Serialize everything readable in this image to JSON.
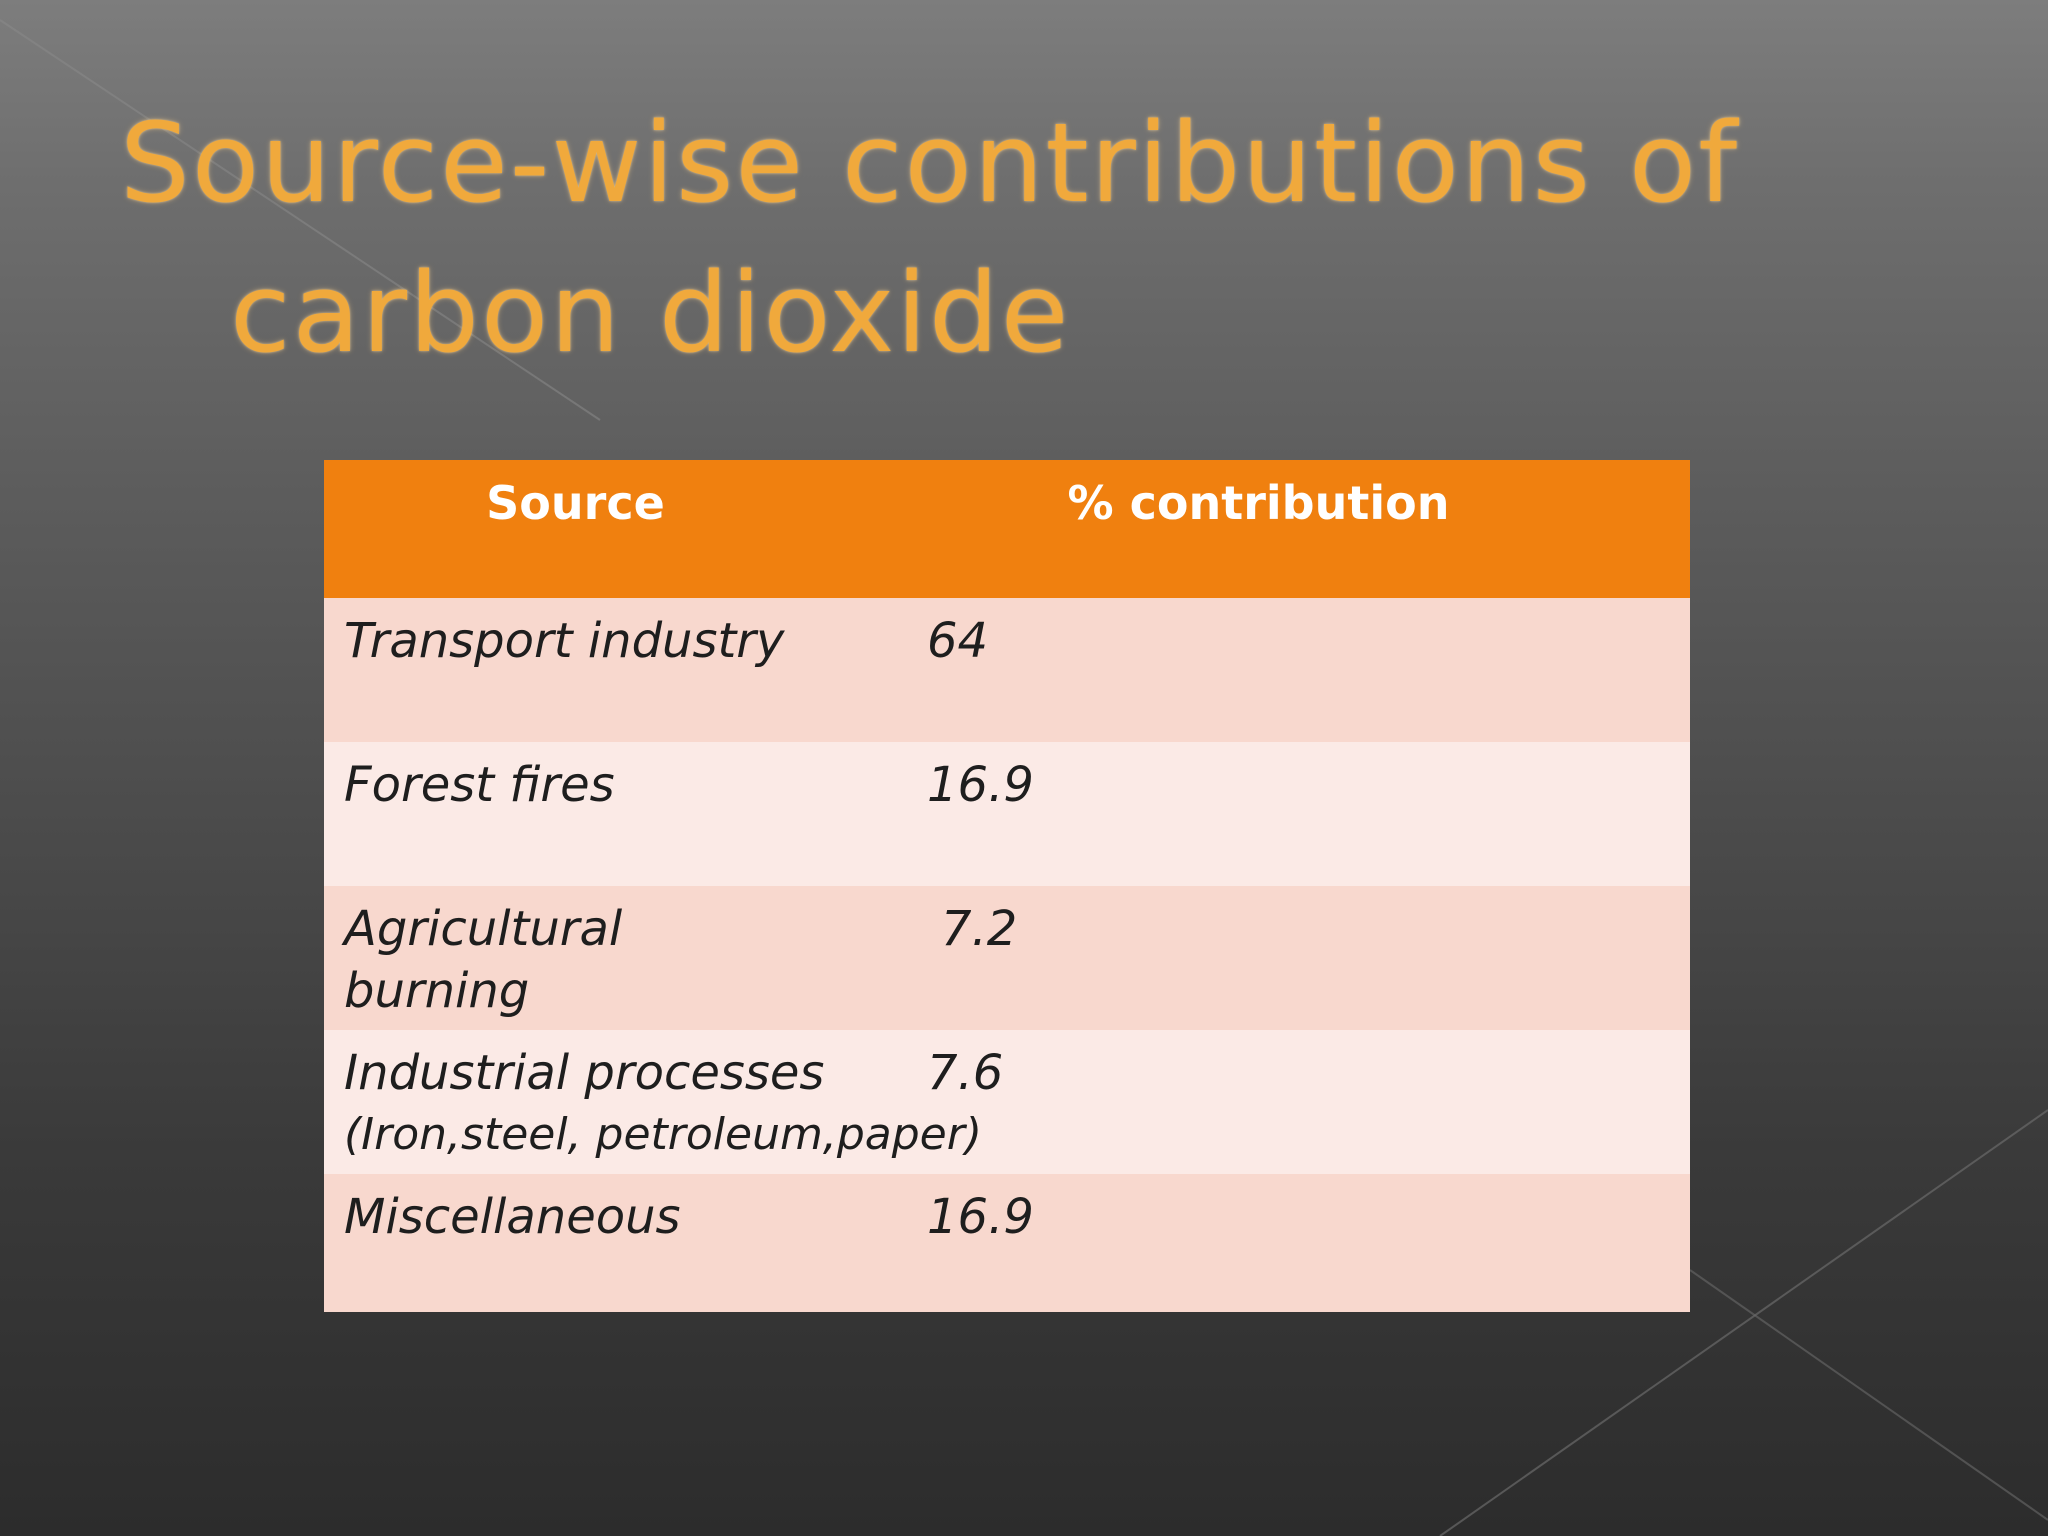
{
  "slide": {
    "title_line1": "Source-wise contributions of",
    "title_line2": "carbon dioxide",
    "title_color": "#f0a93c",
    "header_color": "#f0800f"
  },
  "table": {
    "headers": [
      "Source",
      "% contribution"
    ],
    "rows": [
      {
        "source": "Transport industry",
        "source_sub": "",
        "value": "64"
      },
      {
        "source": "Forest fires",
        "source_sub": "",
        "value": "16.9"
      },
      {
        "source": "Agricultural burning",
        "source_sub": "",
        "value": "7.2"
      },
      {
        "source": "Industrial processes",
        "source_sub": "(Iron,steel, petroleum,paper)",
        "value": "7.6"
      },
      {
        "source": "Miscellaneous",
        "source_sub": "",
        "value": "16.9"
      }
    ]
  }
}
